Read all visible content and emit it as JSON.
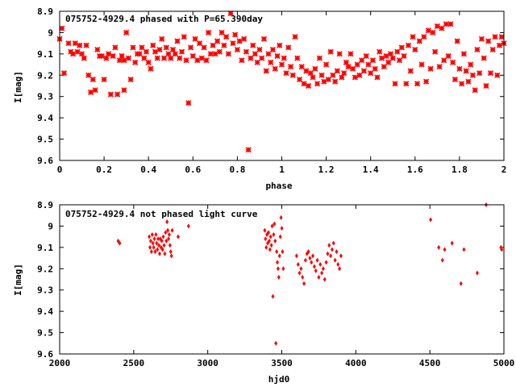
{
  "colors": {
    "points": "#ff0000",
    "axis": "#000000",
    "background": "#ffffff"
  },
  "chart_data": [
    {
      "type": "scatter",
      "title": "075752-4929.4 phased with P=65.390day",
      "xlabel": "phase",
      "ylabel": "I[mag]",
      "xlim": [
        0,
        2
      ],
      "ylim": [
        9.6,
        8.9
      ],
      "y_inverted": true,
      "grid": false,
      "x_ticks": [
        "0",
        "0.2",
        "0.4",
        "0.6",
        "0.8",
        "1",
        "1.2",
        "1.4",
        "1.6",
        "1.8",
        "2"
      ],
      "y_ticks": [
        "8.9",
        "9",
        "9.1",
        "9.2",
        "9.3",
        "9.4",
        "9.5",
        "9.6"
      ],
      "marker": "star",
      "points": [
        [
          0.0,
          9.03
        ],
        [
          0.01,
          8.98
        ],
        [
          0.02,
          9.19
        ],
        [
          0.04,
          9.05
        ],
        [
          0.05,
          9.09
        ],
        [
          0.06,
          9.1
        ],
        [
          0.07,
          9.05
        ],
        [
          0.08,
          9.09
        ],
        [
          0.09,
          9.06
        ],
        [
          0.1,
          9.1
        ],
        [
          0.11,
          9.12
        ],
        [
          0.12,
          9.06
        ],
        [
          0.13,
          9.2
        ],
        [
          0.14,
          9.28
        ],
        [
          0.15,
          9.22
        ],
        [
          0.16,
          9.27
        ],
        [
          0.17,
          9.08
        ],
        [
          0.18,
          9.11
        ],
        [
          0.19,
          9.11
        ],
        [
          0.2,
          9.22
        ],
        [
          0.21,
          9.12
        ],
        [
          0.22,
          9.1
        ],
        [
          0.23,
          9.29
        ],
        [
          0.24,
          9.11
        ],
        [
          0.25,
          9.07
        ],
        [
          0.26,
          9.29
        ],
        [
          0.27,
          9.13
        ],
        [
          0.28,
          9.11
        ],
        [
          0.29,
          9.13
        ],
        [
          0.29,
          9.27
        ],
        [
          0.3,
          9.0
        ],
        [
          0.31,
          9.12
        ],
        [
          0.32,
          9.22
        ],
        [
          0.33,
          9.07
        ],
        [
          0.34,
          9.14
        ],
        [
          0.35,
          9.1
        ],
        [
          0.36,
          9.1
        ],
        [
          0.37,
          9.07
        ],
        [
          0.38,
          9.12
        ],
        [
          0.39,
          9.09
        ],
        [
          0.4,
          9.14
        ],
        [
          0.41,
          9.17
        ],
        [
          0.42,
          9.06
        ],
        [
          0.43,
          9.09
        ],
        [
          0.44,
          9.12
        ],
        [
          0.45,
          9.08
        ],
        [
          0.46,
          9.03
        ],
        [
          0.47,
          9.12
        ],
        [
          0.48,
          9.07
        ],
        [
          0.49,
          9.1
        ],
        [
          0.5,
          9.12
        ],
        [
          0.51,
          9.08
        ],
        [
          0.52,
          9.1
        ],
        [
          0.53,
          9.04
        ],
        [
          0.54,
          9.12
        ],
        [
          0.55,
          9.09
        ],
        [
          0.56,
          9.02
        ],
        [
          0.57,
          9.13
        ],
        [
          0.58,
          9.33
        ],
        [
          0.59,
          9.07
        ],
        [
          0.6,
          9.11
        ],
        [
          0.61,
          9.03
        ],
        [
          0.62,
          9.13
        ],
        [
          0.63,
          9.05
        ],
        [
          0.64,
          9.12
        ],
        [
          0.65,
          9.07
        ],
        [
          0.66,
          9.13
        ],
        [
          0.67,
          9.0
        ],
        [
          0.68,
          9.1
        ],
        [
          0.69,
          9.06
        ],
        [
          0.7,
          9.1
        ],
        [
          0.71,
          9.04
        ],
        [
          0.72,
          9.09
        ],
        [
          0.73,
          9.0
        ],
        [
          0.74,
          9.06
        ],
        [
          0.75,
          9.02
        ],
        [
          0.76,
          9.1
        ],
        [
          0.77,
          8.91
        ],
        [
          0.78,
          9.05
        ],
        [
          0.79,
          9.01
        ],
        [
          0.8,
          9.08
        ],
        [
          0.81,
          9.04
        ],
        [
          0.82,
          9.13
        ],
        [
          0.83,
          9.03
        ],
        [
          0.84,
          9.09
        ],
        [
          0.85,
          9.55
        ],
        [
          0.86,
          9.12
        ],
        [
          0.87,
          9.06
        ],
        [
          0.88,
          9.1
        ],
        [
          0.89,
          9.14
        ],
        [
          0.9,
          9.08
        ],
        [
          0.91,
          9.12
        ],
        [
          0.92,
          9.03
        ],
        [
          0.93,
          9.18
        ],
        [
          0.94,
          9.1
        ],
        [
          0.95,
          9.14
        ],
        [
          0.96,
          9.08
        ],
        [
          0.97,
          9.17
        ],
        [
          0.98,
          9.11
        ],
        [
          0.99,
          9.06
        ],
        [
          1.0,
          9.15
        ],
        [
          1.01,
          9.12
        ],
        [
          1.02,
          9.19
        ],
        [
          1.03,
          9.07
        ],
        [
          1.04,
          9.16
        ],
        [
          1.05,
          9.2
        ],
        [
          1.06,
          9.02
        ],
        [
          1.07,
          9.12
        ],
        [
          1.08,
          9.22
        ],
        [
          1.09,
          9.16
        ],
        [
          1.1,
          9.24
        ],
        [
          1.11,
          9.18
        ],
        [
          1.12,
          9.25
        ],
        [
          1.13,
          9.19
        ],
        [
          1.14,
          9.21
        ],
        [
          1.15,
          9.17
        ],
        [
          1.16,
          9.24
        ],
        [
          1.17,
          9.12
        ],
        [
          1.18,
          9.2
        ],
        [
          1.19,
          9.23
        ],
        [
          1.2,
          9.15
        ],
        [
          1.21,
          9.22
        ],
        [
          1.22,
          9.09
        ],
        [
          1.23,
          9.2
        ],
        [
          1.24,
          9.23
        ],
        [
          1.25,
          9.18
        ],
        [
          1.26,
          9.1
        ],
        [
          1.27,
          9.21
        ],
        [
          1.28,
          9.19
        ],
        [
          1.29,
          9.14
        ],
        [
          1.3,
          9.16
        ],
        [
          1.31,
          9.1
        ],
        [
          1.32,
          9.17
        ],
        [
          1.33,
          9.21
        ],
        [
          1.34,
          9.15
        ],
        [
          1.35,
          9.2
        ],
        [
          1.36,
          9.13
        ],
        [
          1.37,
          9.18
        ],
        [
          1.38,
          9.11
        ],
        [
          1.39,
          9.15
        ],
        [
          1.4,
          9.19
        ],
        [
          1.41,
          9.13
        ],
        [
          1.42,
          9.17
        ],
        [
          1.43,
          9.21
        ],
        [
          1.44,
          9.09
        ],
        [
          1.45,
          9.12
        ],
        [
          1.46,
          9.16
        ],
        [
          1.47,
          9.11
        ],
        [
          1.48,
          9.14
        ],
        [
          1.49,
          9.1
        ],
        [
          1.5,
          9.12
        ],
        [
          1.51,
          9.24
        ],
        [
          1.52,
          9.09
        ],
        [
          1.53,
          9.13
        ],
        [
          1.54,
          9.07
        ],
        [
          1.55,
          9.11
        ],
        [
          1.56,
          9.24
        ],
        [
          1.57,
          9.06
        ],
        [
          1.58,
          9.18
        ],
        [
          1.59,
          9.02
        ],
        [
          1.6,
          9.08
        ],
        [
          1.61,
          9.24
        ],
        [
          1.62,
          9.04
        ],
        [
          1.63,
          9.15
        ],
        [
          1.64,
          9.02
        ],
        [
          1.65,
          9.23
        ],
        [
          1.66,
          8.99
        ],
        [
          1.67,
          9.17
        ],
        [
          1.68,
          9.0
        ],
        [
          1.69,
          9.09
        ],
        [
          1.7,
          8.97
        ],
        [
          1.71,
          9.16
        ],
        [
          1.72,
          8.98
        ],
        [
          1.73,
          9.13
        ],
        [
          1.74,
          8.96
        ],
        [
          1.75,
          9.11
        ],
        [
          1.76,
          8.96
        ],
        [
          1.77,
          9.14
        ],
        [
          1.78,
          9.22
        ],
        [
          1.79,
          9.04
        ],
        [
          1.8,
          9.17
        ],
        [
          1.81,
          9.24
        ],
        [
          1.82,
          9.1
        ],
        [
          1.83,
          9.18
        ],
        [
          1.84,
          9.23
        ],
        [
          1.85,
          9.15
        ],
        [
          1.86,
          9.2
        ],
        [
          1.87,
          9.27
        ],
        [
          1.88,
          9.08
        ],
        [
          1.89,
          9.19
        ],
        [
          1.9,
          9.03
        ],
        [
          1.91,
          9.12
        ],
        [
          1.92,
          9.25
        ],
        [
          1.93,
          9.04
        ],
        [
          1.94,
          9.19
        ],
        [
          1.95,
          9.08
        ],
        [
          1.96,
          9.02
        ],
        [
          1.97,
          9.2
        ],
        [
          1.98,
          9.06
        ],
        [
          1.99,
          9.02
        ],
        [
          2.0,
          9.05
        ]
      ]
    },
    {
      "type": "scatter",
      "title": "075752-4929.4 not phased light curve",
      "xlabel": "hjd0",
      "ylabel": "I[mag]",
      "xlim": [
        2000,
        5000
      ],
      "ylim": [
        9.6,
        8.9
      ],
      "y_inverted": true,
      "grid": false,
      "x_ticks": [
        "2000",
        "2500",
        "3000",
        "3500",
        "4000",
        "4500",
        "5000"
      ],
      "y_ticks": [
        "8.9",
        "9",
        "9.1",
        "9.2",
        "9.3",
        "9.4",
        "9.5",
        "9.6"
      ],
      "marker": "diamond",
      "points": [
        [
          2395,
          9.07
        ],
        [
          2405,
          9.08
        ],
        [
          2605,
          9.05
        ],
        [
          2610,
          9.1
        ],
        [
          2615,
          9.07
        ],
        [
          2620,
          9.12
        ],
        [
          2625,
          9.04
        ],
        [
          2630,
          9.08
        ],
        [
          2635,
          9.1
        ],
        [
          2640,
          9.06
        ],
        [
          2645,
          9.12
        ],
        [
          2650,
          9.04
        ],
        [
          2655,
          9.08
        ],
        [
          2660,
          9.11
        ],
        [
          2665,
          9.06
        ],
        [
          2670,
          9.09
        ],
        [
          2675,
          9.13
        ],
        [
          2680,
          9.06
        ],
        [
          2685,
          9.1
        ],
        [
          2690,
          9.07
        ],
        [
          2695,
          9.11
        ],
        [
          2700,
          9.05
        ],
        [
          2705,
          9.09
        ],
        [
          2710,
          9.13
        ],
        [
          2715,
          9.03
        ],
        [
          2720,
          9.07
        ],
        [
          2725,
          8.98
        ],
        [
          2730,
          9.02
        ],
        [
          2735,
          9.06
        ],
        [
          2740,
          9.04
        ],
        [
          2745,
          9.09
        ],
        [
          2750,
          9.12
        ],
        [
          2755,
          9.14
        ],
        [
          2760,
          9.02
        ],
        [
          2800,
          9.05
        ],
        [
          2870,
          9.0
        ],
        [
          3385,
          9.02
        ],
        [
          3390,
          9.06
        ],
        [
          3395,
          9.1
        ],
        [
          3400,
          9.04
        ],
        [
          3405,
          9.08
        ],
        [
          3410,
          9.03
        ],
        [
          3415,
          9.07
        ],
        [
          3420,
          9.11
        ],
        [
          3425,
          9.05
        ],
        [
          3430,
          9.09
        ],
        [
          3435,
          9.0
        ],
        [
          3440,
          9.33
        ],
        [
          3445,
          9.04
        ],
        [
          3450,
          8.99
        ],
        [
          3455,
          9.07
        ],
        [
          3460,
          9.55
        ],
        [
          3465,
          9.12
        ],
        [
          3470,
          9.17
        ],
        [
          3475,
          9.2
        ],
        [
          3480,
          9.24
        ],
        [
          3485,
          9.14
        ],
        [
          3490,
          9.05
        ],
        [
          3495,
          8.96
        ],
        [
          3500,
          9.01
        ],
        [
          3505,
          9.12
        ],
        [
          3510,
          9.2
        ],
        [
          3600,
          9.14
        ],
        [
          3610,
          9.18
        ],
        [
          3620,
          9.22
        ],
        [
          3630,
          9.2
        ],
        [
          3640,
          9.24
        ],
        [
          3650,
          9.27
        ],
        [
          3660,
          9.16
        ],
        [
          3670,
          9.13
        ],
        [
          3680,
          9.12
        ],
        [
          3690,
          9.15
        ],
        [
          3700,
          9.17
        ],
        [
          3710,
          9.14
        ],
        [
          3720,
          9.19
        ],
        [
          3730,
          9.21
        ],
        [
          3740,
          9.16
        ],
        [
          3750,
          9.24
        ],
        [
          3760,
          9.18
        ],
        [
          3770,
          9.22
        ],
        [
          3780,
          9.2
        ],
        [
          3790,
          9.25
        ],
        [
          3800,
          9.17
        ],
        [
          3810,
          9.13
        ],
        [
          3820,
          9.09
        ],
        [
          3830,
          9.14
        ],
        [
          3840,
          9.11
        ],
        [
          3850,
          9.08
        ],
        [
          3860,
          9.16
        ],
        [
          3870,
          9.12
        ],
        [
          3880,
          9.18
        ],
        [
          3890,
          9.2
        ],
        [
          3900,
          9.14
        ],
        [
          4505,
          8.97
        ],
        [
          4560,
          9.1
        ],
        [
          4585,
          9.16
        ],
        [
          4600,
          9.11
        ],
        [
          4650,
          9.08
        ],
        [
          4710,
          9.27
        ],
        [
          4730,
          9.11
        ],
        [
          4820,
          9.22
        ],
        [
          4880,
          8.9
        ],
        [
          4980,
          9.1
        ],
        [
          4985,
          9.11
        ]
      ]
    }
  ]
}
